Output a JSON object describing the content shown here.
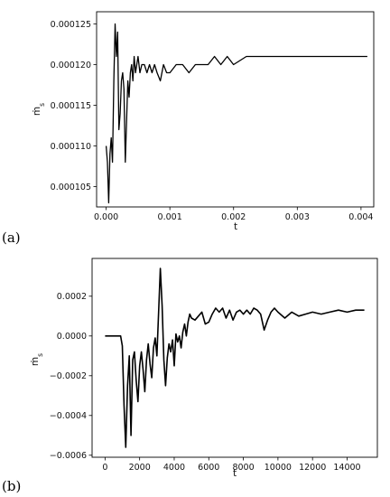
{
  "chart_data": [
    {
      "panel_label": "(a)",
      "type": "line",
      "xlabel": "t",
      "ylabel": "ṁ",
      "ylabel_sub": "s",
      "xlim": [
        -0.00015,
        0.0042
      ],
      "ylim": [
        0.0001025,
        0.0001265
      ],
      "xticks": [
        0.0,
        0.001,
        0.002,
        0.003,
        0.004
      ],
      "xtick_labels": [
        "0.000",
        "0.001",
        "0.002",
        "0.003",
        "0.004"
      ],
      "yticks": [
        0.000105,
        0.00011,
        0.000115,
        0.00012,
        0.000125
      ],
      "ytick_labels": [
        "0.000105",
        "0.000110",
        "0.000115",
        "0.000120",
        "0.000125"
      ],
      "grid": false,
      "series": [
        {
          "color": "#000000",
          "x": [
            0.0,
            2e-05,
            4e-05,
            6e-05,
            8e-05,
            0.0001,
            0.00012,
            0.00014,
            0.00016,
            0.00018,
            0.0002,
            0.00022,
            0.00024,
            0.00026,
            0.00028,
            0.0003,
            0.00032,
            0.00034,
            0.00036,
            0.00038,
            0.0004,
            0.00042,
            0.00044,
            0.00046,
            0.00048,
            0.0005,
            0.00053,
            0.00056,
            0.0006,
            0.00064,
            0.00068,
            0.00072,
            0.00076,
            0.0008,
            0.00085,
            0.0009,
            0.00095,
            0.001,
            0.0011,
            0.0012,
            0.0013,
            0.0014,
            0.0015,
            0.0016,
            0.0017,
            0.0018,
            0.0019,
            0.002,
            0.0022,
            0.0024,
            0.0026,
            0.0028,
            0.003,
            0.0032,
            0.0034,
            0.0036,
            0.0038,
            0.004,
            0.0041
          ],
          "values": [
            0.00011,
            0.000108,
            0.000103,
            0.000109,
            0.000111,
            0.000108,
            0.000118,
            0.000125,
            0.000121,
            0.000124,
            0.000112,
            0.000114,
            0.000118,
            0.000119,
            0.000117,
            0.000108,
            0.000113,
            0.000118,
            0.000116,
            0.000119,
            0.00012,
            0.000118,
            0.000121,
            0.000119,
            0.00012,
            0.000121,
            0.000119,
            0.00012,
            0.00012,
            0.000119,
            0.00012,
            0.000119,
            0.00012,
            0.000119,
            0.000118,
            0.00012,
            0.000119,
            0.000119,
            0.00012,
            0.00012,
            0.000119,
            0.00012,
            0.00012,
            0.00012,
            0.000121,
            0.00012,
            0.000121,
            0.00012,
            0.000121,
            0.000121,
            0.000121,
            0.000121,
            0.000121,
            0.000121,
            0.000121,
            0.000121,
            0.000121,
            0.000121,
            0.000121
          ]
        }
      ]
    },
    {
      "panel_label": "(b)",
      "type": "line",
      "xlabel": "t",
      "ylabel": "ṁ",
      "ylabel_sub": "s",
      "xlim": [
        -750,
        15750
      ],
      "ylim": [
        -0.00061,
        0.00039
      ],
      "xticks": [
        0,
        2000,
        4000,
        6000,
        8000,
        10000,
        12000,
        14000
      ],
      "xtick_labels": [
        "0",
        "2000",
        "4000",
        "6000",
        "8000",
        "10000",
        "12000",
        "14000"
      ],
      "yticks": [
        -0.0006,
        -0.0004,
        -0.0002,
        0.0,
        0.0002
      ],
      "ytick_labels": [
        "−0.0006",
        "−0.0004",
        "−0.0002",
        "0.0000",
        "0.0002"
      ],
      "grid": false,
      "series": [
        {
          "color": "#000000",
          "x": [
            0,
            900,
            1000,
            1100,
            1200,
            1300,
            1400,
            1500,
            1600,
            1700,
            1800,
            1900,
            2000,
            2100,
            2200,
            2300,
            2400,
            2500,
            2600,
            2700,
            2800,
            2900,
            3000,
            3100,
            3200,
            3300,
            3400,
            3500,
            3600,
            3700,
            3800,
            3900,
            4000,
            4100,
            4200,
            4300,
            4400,
            4500,
            4600,
            4700,
            4800,
            4900,
            5000,
            5200,
            5400,
            5600,
            5800,
            6000,
            6200,
            6400,
            6600,
            6800,
            7000,
            7200,
            7400,
            7600,
            7800,
            8000,
            8200,
            8400,
            8600,
            8800,
            9000,
            9200,
            9400,
            9600,
            9800,
            10000,
            10400,
            10800,
            11200,
            11600,
            12000,
            12500,
            13000,
            13500,
            14000,
            14500,
            15000
          ],
          "values": [
            0.0,
            0.0,
            -5e-05,
            -0.00035,
            -0.00056,
            -0.00025,
            -0.0001,
            -0.0005,
            -0.00012,
            -8e-05,
            -0.00022,
            -0.00033,
            -0.00015,
            -8e-05,
            -0.00017,
            -0.00028,
            -0.00012,
            -4e-05,
            -0.00014,
            -0.00021,
            -6e-05,
            -1e-05,
            -0.0001,
            0.00012,
            0.00034,
            0.00015,
            -0.00012,
            -0.00025,
            -0.00011,
            -4e-05,
            -8e-05,
            -2e-05,
            -0.00015,
            1e-05,
            -3e-05,
            0.0,
            -6e-05,
            2e-05,
            6e-05,
            0.0,
            7e-05,
            0.00011,
            9e-05,
            8e-05,
            0.0001,
            0.00012,
            6e-05,
            7e-05,
            0.00011,
            0.00014,
            0.00012,
            0.00014,
            9e-05,
            0.00013,
            8e-05,
            0.00012,
            0.00013,
            0.00011,
            0.00013,
            0.00011,
            0.00014,
            0.00013,
            0.00011,
            3e-05,
            8e-05,
            0.00012,
            0.00014,
            0.00012,
            9e-05,
            0.00012,
            0.0001,
            0.00011,
            0.00012,
            0.00011,
            0.00012,
            0.00013,
            0.00012,
            0.00013,
            0.00013
          ]
        }
      ]
    }
  ]
}
